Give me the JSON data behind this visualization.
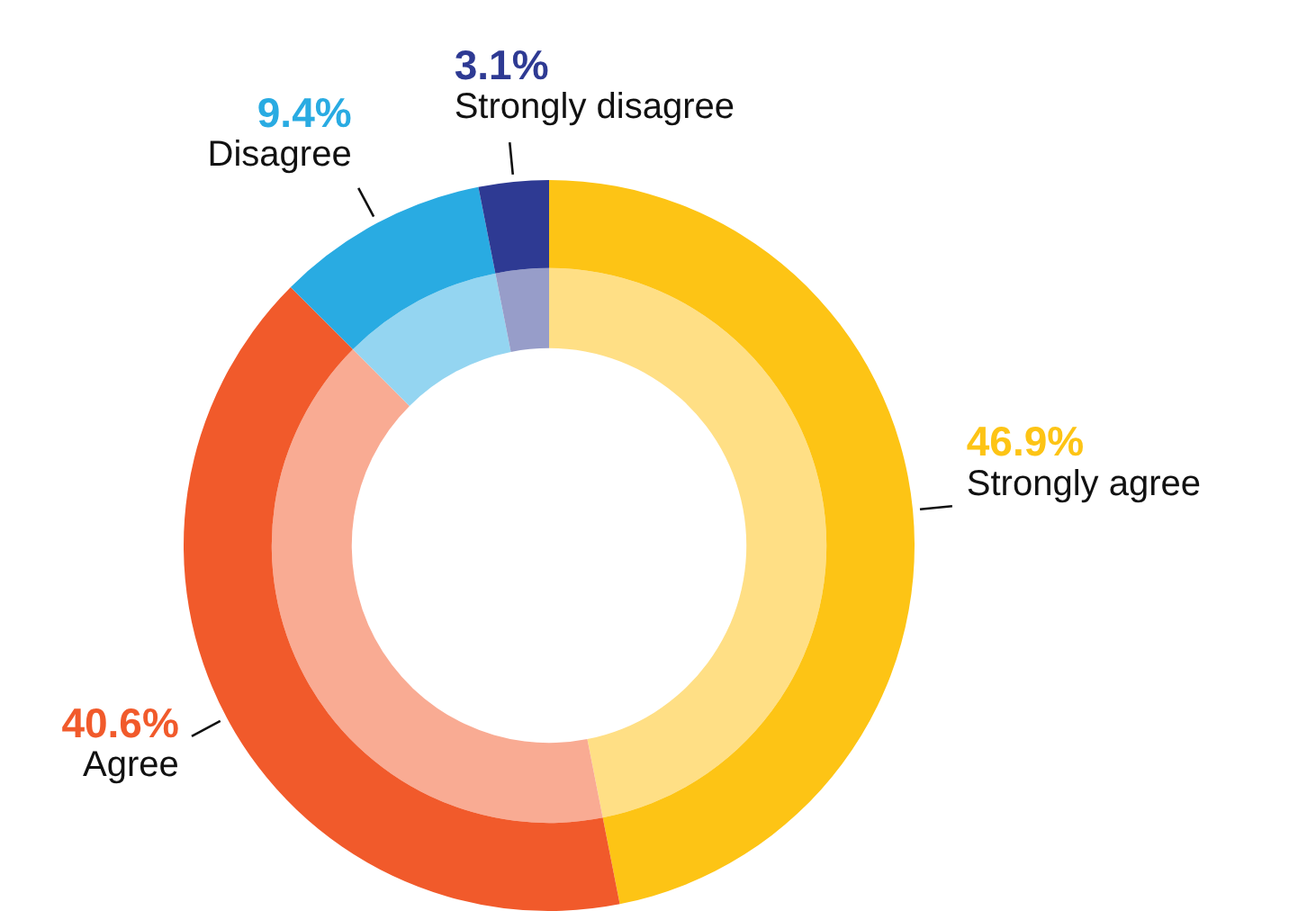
{
  "chart_data": {
    "type": "donut",
    "categories": [
      "Strongly agree",
      "Agree",
      "Disagree",
      "Strongly disagree"
    ],
    "series": [
      {
        "values": [
          46.9,
          40.6,
          9.4,
          3.1
        ],
        "colors": [
          "#fdc415",
          "#f15a2b",
          "#29abe2",
          "#2e3a93"
        ],
        "value_labels": [
          "46.9%",
          "40.6%",
          "9.4%",
          "3.1%"
        ]
      },
      {
        "values": [
          46.9,
          40.6,
          9.4,
          3.1
        ],
        "colors": [
          "#ffdf85",
          "#f9ab93",
          "#94d5f1",
          "#979dc9"
        ]
      }
    ]
  }
}
